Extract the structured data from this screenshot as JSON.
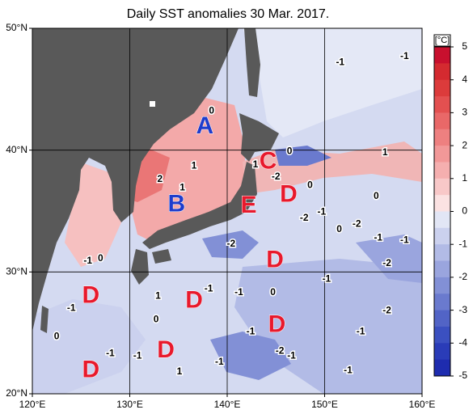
{
  "chart_data": {
    "type": "contour-map",
    "title": "Daily SST anomalies 30 Mar. 2017.",
    "xlim": [
      120,
      160
    ],
    "ylim": [
      20,
      50
    ],
    "xticks": [
      {
        "value": 120,
        "label": "120°E"
      },
      {
        "value": 130,
        "label": "130°E"
      },
      {
        "value": 140,
        "label": "140°E"
      },
      {
        "value": 150,
        "label": "150°E"
      },
      {
        "value": 160,
        "label": "160°E"
      }
    ],
    "yticks": [
      {
        "value": 20,
        "label": "20°N"
      },
      {
        "value": 30,
        "label": "30°N"
      },
      {
        "value": 40,
        "label": "40°N"
      },
      {
        "value": 50,
        "label": "50°N"
      }
    ],
    "grid": true,
    "colorbar": {
      "label": "[°C]",
      "lim": [
        -5,
        5
      ],
      "ticks": [
        5,
        4,
        3,
        2,
        1,
        0,
        -1,
        -2,
        -3,
        -4,
        -5
      ],
      "colors": [
        "#c8102e",
        "#d42a30",
        "#dc3b3b",
        "#e35050",
        "#e96868",
        "#ee8080",
        "#f29898",
        "#f5afaf",
        "#f8c8c8",
        "#fbe2e2",
        "#e2e6f5",
        "#cbd1ee",
        "#b2bbe6",
        "#9aa5de",
        "#8290d6",
        "#6a7ace",
        "#5264c6",
        "#3b50c0",
        "#2a3cb8",
        "#1e2caf"
      ]
    },
    "annotations": [
      {
        "text": "A",
        "lon": 137.7,
        "lat": 41.9,
        "color": "#1e3ccc"
      },
      {
        "text": "B",
        "lon": 134.8,
        "lat": 35.5,
        "color": "#1e3ccc"
      },
      {
        "text": "C",
        "lon": 144.2,
        "lat": 39.0,
        "color": "#e8192c"
      },
      {
        "text": "D",
        "lon": 146.3,
        "lat": 36.3,
        "color": "#e8192c"
      },
      {
        "text": "E",
        "lon": 142.2,
        "lat": 35.4,
        "color": "#e8192c"
      },
      {
        "text": "D",
        "lon": 144.9,
        "lat": 30.9,
        "color": "#e8192c"
      },
      {
        "text": "D",
        "lon": 126.0,
        "lat": 28.0,
        "color": "#e8192c"
      },
      {
        "text": "D",
        "lon": 136.6,
        "lat": 27.6,
        "color": "#e8192c"
      },
      {
        "text": "D",
        "lon": 145.1,
        "lat": 25.6,
        "color": "#e8192c"
      },
      {
        "text": "D",
        "lon": 133.7,
        "lat": 23.5,
        "color": "#e8192c"
      },
      {
        "text": "D",
        "lon": 126.0,
        "lat": 21.9,
        "color": "#e8192c"
      }
    ],
    "contour_labels": [
      {
        "value": 0,
        "lon": 138.4,
        "lat": 43.2
      },
      {
        "value": 1,
        "lon": 136.6,
        "lat": 38.7
      },
      {
        "value": 2,
        "lon": 133.1,
        "lat": 37.6
      },
      {
        "value": 1,
        "lon": 135.4,
        "lat": 36.9
      },
      {
        "value": 1,
        "lon": 142.9,
        "lat": 38.8
      },
      {
        "value": -2,
        "lon": 145.0,
        "lat": 37.8
      },
      {
        "value": 0,
        "lon": 146.4,
        "lat": 39.9
      },
      {
        "value": 1,
        "lon": 156.2,
        "lat": 39.8
      },
      {
        "value": -1,
        "lon": 151.6,
        "lat": 47.2
      },
      {
        "value": -1,
        "lon": 158.2,
        "lat": 47.7
      },
      {
        "value": 0,
        "lon": 148.5,
        "lat": 37.1
      },
      {
        "value": 0,
        "lon": 155.3,
        "lat": 36.2
      },
      {
        "value": -1,
        "lon": 149.7,
        "lat": 34.9
      },
      {
        "value": -2,
        "lon": 147.9,
        "lat": 34.4
      },
      {
        "value": 0,
        "lon": 151.5,
        "lat": 33.5
      },
      {
        "value": -2,
        "lon": 153.3,
        "lat": 33.9
      },
      {
        "value": -1,
        "lon": 155.5,
        "lat": 32.8
      },
      {
        "value": -1,
        "lon": 158.2,
        "lat": 32.6
      },
      {
        "value": -2,
        "lon": 140.4,
        "lat": 32.3
      },
      {
        "value": -2,
        "lon": 156.4,
        "lat": 30.7
      },
      {
        "value": -1,
        "lon": 150.2,
        "lat": 29.4
      },
      {
        "value": -1,
        "lon": 125.7,
        "lat": 30.9
      },
      {
        "value": 0,
        "lon": 127.0,
        "lat": 31.1
      },
      {
        "value": -1,
        "lon": 124.0,
        "lat": 27.0
      },
      {
        "value": 1,
        "lon": 132.9,
        "lat": 28.0
      },
      {
        "value": -1,
        "lon": 138.1,
        "lat": 28.6
      },
      {
        "value": 0,
        "lon": 144.7,
        "lat": 28.3
      },
      {
        "value": -1,
        "lon": 141.2,
        "lat": 28.3
      },
      {
        "value": 0,
        "lon": 132.7,
        "lat": 26.1
      },
      {
        "value": -2,
        "lon": 156.4,
        "lat": 26.8
      },
      {
        "value": -1,
        "lon": 142.4,
        "lat": 25.1
      },
      {
        "value": -1,
        "lon": 153.7,
        "lat": 25.1
      },
      {
        "value": -2,
        "lon": 145.4,
        "lat": 23.5
      },
      {
        "value": -1,
        "lon": 146.6,
        "lat": 23.1
      },
      {
        "value": 0,
        "lon": 122.5,
        "lat": 24.7
      },
      {
        "value": -1,
        "lon": 128.0,
        "lat": 23.3
      },
      {
        "value": -1,
        "lon": 130.8,
        "lat": 23.1
      },
      {
        "value": -1,
        "lon": 139.2,
        "lat": 22.6
      },
      {
        "value": -1,
        "lon": 152.4,
        "lat": 21.9
      },
      {
        "value": 1,
        "lon": 135.1,
        "lat": 21.8
      }
    ]
  }
}
